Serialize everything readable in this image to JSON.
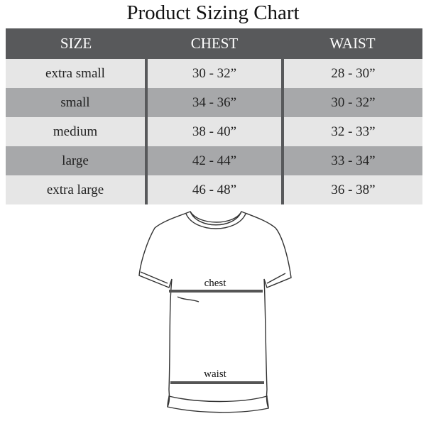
{
  "title": "Product Sizing Chart",
  "table": {
    "headers": [
      "SIZE",
      "CHEST",
      "WAIST"
    ],
    "rows": [
      [
        "extra small",
        "30 - 32”",
        "28 - 30”"
      ],
      [
        "small",
        "34 - 36”",
        "30 - 32”"
      ],
      [
        "medium",
        "38 - 40”",
        "32 - 33”"
      ],
      [
        "large",
        "42 - 44”",
        "33 - 34”"
      ],
      [
        "extra large",
        "46 - 48”",
        "36 - 38”"
      ]
    ]
  },
  "diagram": {
    "chest_label": "chest",
    "waist_label": "waist"
  },
  "colors": {
    "header": "#58595b",
    "row_light": "#e6e6e6",
    "row_dark": "#a7a8aa"
  }
}
